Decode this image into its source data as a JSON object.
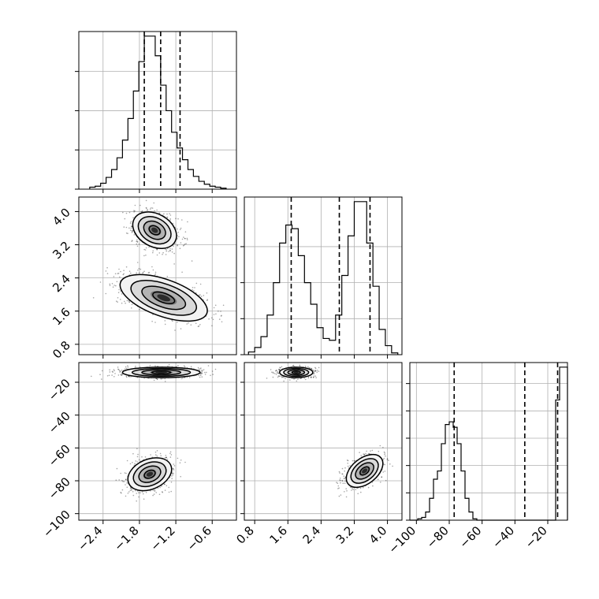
{
  "chart_data": {
    "type": "corner",
    "title": "",
    "parameters": [
      {
        "label": "",
        "lim": [
          -2.8,
          -0.2
        ],
        "ticks": [
          -2.4,
          -1.8,
          -1.2,
          -0.6
        ],
        "tick_labels": [
          "−2.4",
          "−1.8",
          "−1.2",
          "−0.6"
        ]
      },
      {
        "label": "",
        "lim": [
          0.55,
          4.35
        ],
        "ticks": [
          0.8,
          1.6,
          2.4,
          3.2,
          4.0
        ],
        "tick_labels": [
          "0.8",
          "1.6",
          "2.4",
          "3.2",
          "4.0"
        ]
      },
      {
        "label": "",
        "lim": [
          -104,
          -8
        ],
        "ticks": [
          -100,
          -80,
          -60,
          -40,
          -20
        ],
        "tick_labels": [
          "−100",
          "−80",
          "−60",
          "−40",
          "−20"
        ]
      }
    ],
    "marginals": [
      {
        "bin_edges": [
          -2.62,
          -2.53,
          -2.44,
          -2.35,
          -2.26,
          -2.17,
          -2.08,
          -1.99,
          -1.9,
          -1.81,
          -1.72,
          -1.63,
          -1.54,
          -1.45,
          -1.36,
          -1.27,
          -1.18,
          -1.09,
          -1.0,
          -0.91,
          -0.82,
          -0.73,
          -0.64,
          -0.55,
          -0.46,
          -0.37
        ],
        "counts": [
          0.1,
          0.15,
          0.3,
          0.6,
          1.0,
          1.6,
          2.5,
          3.6,
          5.0,
          6.5,
          7.8,
          7.8,
          6.8,
          5.3,
          4.0,
          2.9,
          2.1,
          1.5,
          1.0,
          0.65,
          0.4,
          0.25,
          0.15,
          0.1,
          0.05
        ],
        "quantiles": [
          -1.72,
          -1.45,
          -1.13
        ],
        "y_ticks": [
          0,
          2,
          4,
          6
        ]
      },
      {
        "bin_edges": [
          0.65,
          0.8,
          0.95,
          1.1,
          1.25,
          1.4,
          1.55,
          1.7,
          1.85,
          2.0,
          2.15,
          2.3,
          2.45,
          2.6,
          2.75,
          2.9,
          3.05,
          3.2,
          3.35,
          3.5,
          3.65,
          3.8,
          3.95,
          4.1,
          4.25
        ],
        "counts": [
          0.15,
          0.4,
          1.0,
          2.2,
          4.0,
          6.2,
          7.2,
          7.0,
          5.5,
          4.0,
          2.8,
          1.5,
          0.9,
          0.8,
          2.2,
          4.4,
          6.6,
          8.5,
          8.5,
          6.2,
          3.8,
          1.4,
          0.5,
          0.1
        ],
        "quantiles": [
          1.68,
          2.84,
          3.58
        ],
        "y_ticks": [
          0,
          2,
          4,
          6
        ]
      },
      {
        "bin_edges": [
          -104,
          -101.6,
          -99.2,
          -96.8,
          -94.4,
          -92.0,
          -89.6,
          -87.2,
          -84.8,
          -82.4,
          -80.0,
          -77.6,
          -75.2,
          -72.8,
          -70.4,
          -68.0,
          -65.6,
          -63.2,
          -60.8,
          -58.4,
          -56.0,
          -53.6,
          -51.2,
          -48.8,
          -46.4,
          -44.0,
          -41.6,
          -39.2,
          -36.8,
          -34.4,
          -32.0,
          -29.6,
          -27.2,
          -24.8,
          -22.4,
          -20.0,
          -17.6,
          -15.2,
          -12.8,
          -10.4,
          -8.0
        ],
        "counts": [
          0,
          0,
          0.05,
          0.1,
          0.3,
          0.8,
          1.5,
          1.8,
          2.8,
          3.5,
          3.6,
          3.4,
          2.8,
          1.8,
          0.8,
          0.3,
          0.05,
          0,
          0,
          0,
          0,
          0,
          0,
          0,
          0,
          0,
          0,
          0,
          0,
          0,
          0,
          0,
          0,
          0,
          0,
          0,
          0,
          4.4,
          5.6,
          5.6
        ],
        "quantiles": [
          -77,
          -34,
          -14
        ],
        "y_ticks": [
          0,
          1,
          2,
          3,
          4,
          5
        ]
      }
    ],
    "joint": [
      {
        "x_param": 0,
        "y_param": 1,
        "modes": [
          {
            "mean": [
              -1.55,
              3.55
            ],
            "sd": [
              0.18,
              0.22
            ],
            "rho": -0.3
          },
          {
            "mean": [
              -1.4,
              1.92
            ],
            "sd": [
              0.36,
              0.28
            ],
            "rho": -0.55
          }
        ]
      },
      {
        "x_param": 0,
        "y_param": 2,
        "modes": [
          {
            "mean": [
              -1.63,
              -76
            ],
            "sd": [
              0.18,
              5
            ],
            "rho": 0.3
          },
          {
            "mean": [
              -1.44,
              -14
            ],
            "sd": [
              0.32,
              1.6
            ],
            "rho": 0.0
          }
        ]
      },
      {
        "x_param": 1,
        "y_param": 2,
        "modes": [
          {
            "mean": [
              3.45,
              -74
            ],
            "sd": [
              0.22,
              5
            ],
            "rho": 0.45
          },
          {
            "mean": [
              1.8,
              -14
            ],
            "sd": [
              0.2,
              1.6
            ],
            "rho": 0.0
          }
        ]
      }
    ],
    "contour_levels_sigma": [
      0.5,
      1.0,
      1.5,
      2.0
    ],
    "grid": true
  }
}
